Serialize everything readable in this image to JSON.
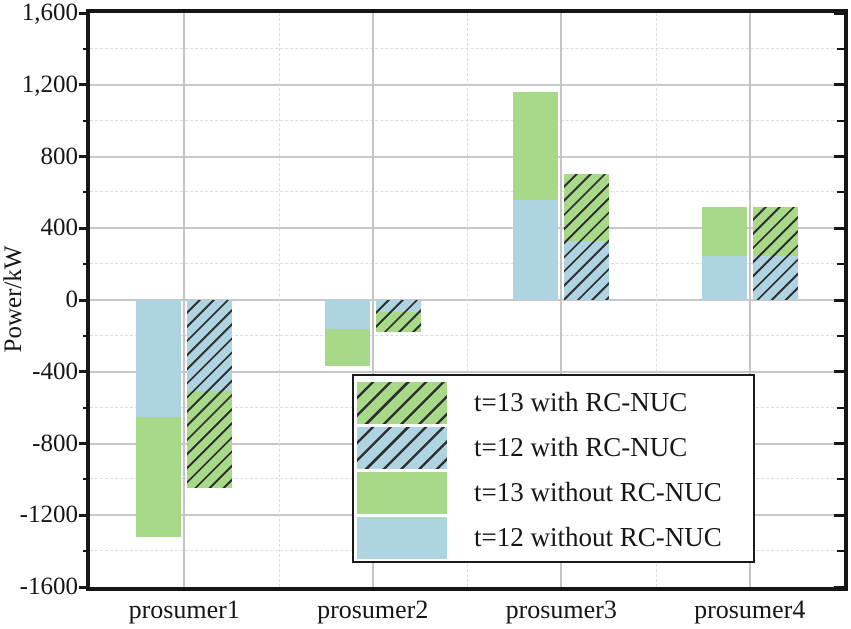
{
  "chart_data": {
    "type": "bar",
    "stacked": true,
    "title": "",
    "xlabel": "",
    "ylabel": "Power/kW",
    "ylim": [
      -1600,
      1600
    ],
    "y_major_step": 400,
    "y_minor_step": 200,
    "grid": true,
    "categories": [
      "prosumer1",
      "prosumer2",
      "prosumer3",
      "prosumer4"
    ],
    "y_ticks": [
      {
        "value": 1600,
        "label": "1,600"
      },
      {
        "value": 1200,
        "label": "1,200"
      },
      {
        "value": 800,
        "label": "800"
      },
      {
        "value": 400,
        "label": "400"
      },
      {
        "value": 0,
        "label": "0"
      },
      {
        "value": -400,
        "label": "-400"
      },
      {
        "value": -800,
        "label": "-800"
      },
      {
        "value": -1200,
        "label": "-1200"
      },
      {
        "value": -1600,
        "label": "-1600"
      }
    ],
    "bars": [
      {
        "variant": "without RC-NUC",
        "hatched": false,
        "stack": [
          {
            "label": "t=12 without RC-NUC",
            "color": "#aed4e2",
            "values": [
              -650,
              -160,
              560,
              245
            ]
          },
          {
            "label": "t=13 without RC-NUC",
            "color": "#a8d989",
            "values": [
              -670,
              -210,
              600,
              275
            ]
          }
        ]
      },
      {
        "variant": "with RC-NUC",
        "hatched": true,
        "stack": [
          {
            "label": "t=12 with RC-NUC",
            "color": "#aed4e2",
            "values": [
              -510,
              -65,
              330,
              245
            ]
          },
          {
            "label": "t=13 with RC-NUC",
            "color": "#a8d989",
            "values": [
              -540,
              -115,
              370,
              275
            ]
          }
        ]
      }
    ],
    "legend": {
      "position": "inside bottom-center",
      "entries": [
        {
          "label": "t=13 with RC-NUC",
          "color": "#a8d989",
          "hatched": true
        },
        {
          "label": "t=12 with RC-NUC",
          "color": "#aed4e2",
          "hatched": true
        },
        {
          "label": "t=13 without RC-NUC",
          "color": "#a8d989",
          "hatched": false
        },
        {
          "label": "t=12 without RC-NUC",
          "color": "#aed4e2",
          "hatched": false
        }
      ]
    },
    "colors": {
      "hatch_line": "#2e2e2e",
      "grid_major": "#c8c8c8",
      "grid_minor": "#dcdcdc",
      "axis": "#161616",
      "background": "#ffffff"
    }
  }
}
